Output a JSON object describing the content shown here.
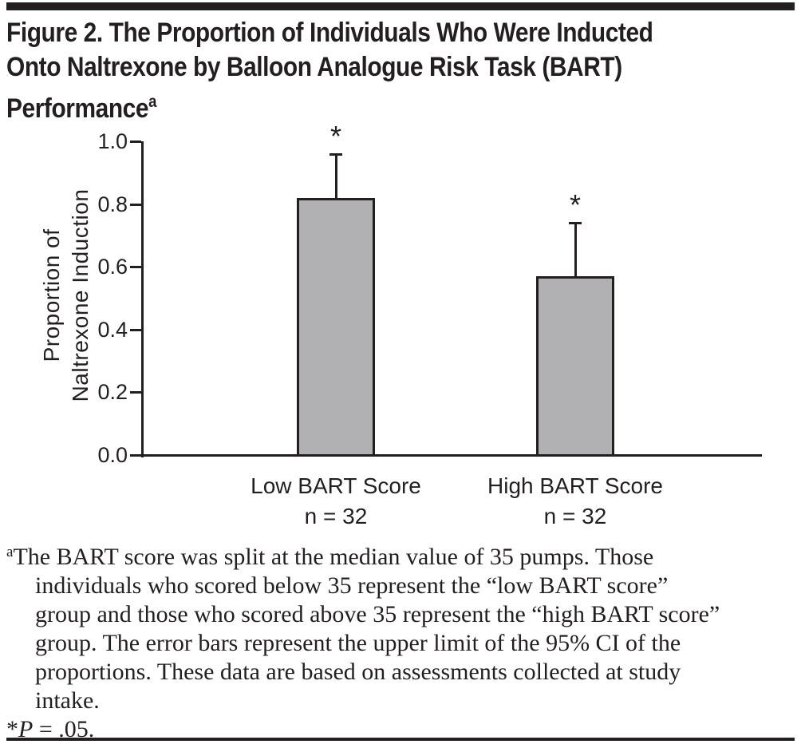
{
  "page": {
    "background": "#ffffff",
    "rule_color": "#231f20"
  },
  "title": {
    "lines": [
      "Figure 2. The Proportion of Individuals Who Were Inducted",
      "Onto Naltrexone by Balloon Analogue Risk Task (BART)",
      "Performance"
    ],
    "superscript": "a"
  },
  "chart_data": {
    "type": "bar",
    "title": "Figure 2. The Proportion of Individuals Who Were Inducted Onto Naltrexone by Balloon Analogue Risk Task (BART) Performance",
    "xlabel": "",
    "ylabel": "Proportion of Naltrexone Induction",
    "ylabel_lines": [
      "Proportion of",
      "Naltrexone Induction"
    ],
    "categories": [
      "Low BART Score",
      "High BART Score"
    ],
    "n_labels": [
      "n = 32",
      "n = 32"
    ],
    "values": [
      0.82,
      0.57
    ],
    "error_upper": [
      0.96,
      0.74
    ],
    "significance": [
      "*",
      "*"
    ],
    "ylim": [
      0.0,
      1.0
    ],
    "yticks": [
      0.0,
      0.2,
      0.4,
      0.6,
      0.8,
      1.0
    ],
    "ytick_labels": [
      "0.0",
      "0.2",
      "0.4",
      "0.6",
      "0.8",
      "1.0"
    ],
    "grid": false,
    "legend": "none",
    "bar_color": "#b1b1b3",
    "axis_color": "#231f20"
  },
  "footnote": {
    "superscript": "a",
    "lines": [
      "The BART score was split at the median value of 35 pumps. Those",
      "individuals who scored below 35 represent the “low BART score”",
      "group and those who scored above 35 represent the “high BART score”",
      "group. The error bars represent the upper limit of the 95% CI of the",
      "proportions. These data are based on assessments collected at study",
      "intake."
    ],
    "p_line": {
      "star": "*",
      "symbol": "P",
      "rest": " = .05."
    }
  }
}
